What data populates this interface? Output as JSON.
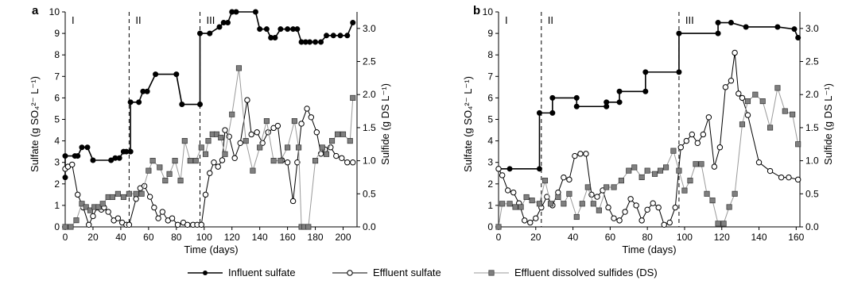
{
  "legend": {
    "influent": "Influent sulfate",
    "effluent": "Effluent sulfate",
    "ds": "Effluent dissolved sulfides (DS)"
  },
  "colors": {
    "influent": "#000000",
    "effluent": "#000000",
    "ds_line": "#9a9a9a",
    "ds_marker": "#7f7f7f"
  },
  "chart_data": [
    {
      "panel": "a",
      "type": "line",
      "xlabel": "Time (days)",
      "ylabel_left": "Sulfate (g SO₄²⁻ L⁻¹)",
      "ylabel_right": "Sulfide (g DS L⁻¹)",
      "xlim": [
        0,
        210
      ],
      "xticks": [
        0,
        20,
        40,
        60,
        80,
        100,
        120,
        140,
        160,
        180,
        200
      ],
      "ylim_left": [
        0,
        10
      ],
      "yticks_left": [
        0,
        1,
        2,
        3,
        4,
        5,
        6,
        7,
        8,
        9,
        10
      ],
      "ylim_right": [
        0,
        3.25
      ],
      "yticks_right": [
        0.0,
        0.5,
        1.0,
        1.5,
        2.0,
        2.5,
        3.0
      ],
      "phases": [
        {
          "label": "I",
          "x": 0
        },
        {
          "label": "II",
          "x": 46
        },
        {
          "label": "III",
          "x": 97
        }
      ],
      "phase_boundaries": [
        46,
        97
      ],
      "series": [
        {
          "name": "Influent sulfate",
          "axis": "left",
          "marker": "filled-circle",
          "step": true,
          "x": [
            0,
            0,
            7,
            9,
            12,
            16,
            20,
            33,
            36,
            39,
            42,
            44,
            47,
            47,
            53,
            56,
            59,
            65,
            80,
            84,
            97,
            97,
            104,
            111,
            114,
            117,
            120,
            123,
            137,
            140,
            145,
            148,
            151,
            155,
            160,
            164,
            167,
            170,
            173,
            176,
            180,
            184,
            188,
            193,
            198,
            203,
            207
          ],
          "y": [
            2.3,
            3.3,
            3.3,
            3.3,
            3.7,
            3.7,
            3.1,
            3.1,
            3.2,
            3.2,
            3.5,
            3.5,
            3.5,
            5.8,
            5.8,
            6.3,
            6.3,
            7.1,
            7.1,
            5.7,
            5.7,
            9.0,
            9.0,
            9.3,
            9.5,
            9.5,
            10.0,
            10.0,
            10.0,
            9.2,
            9.2,
            8.8,
            8.8,
            9.2,
            9.2,
            9.2,
            9.2,
            8.6,
            8.6,
            8.6,
            8.6,
            8.6,
            8.9,
            8.9,
            8.9,
            8.9,
            9.5
          ]
        },
        {
          "name": "Effluent sulfate",
          "axis": "left",
          "marker": "open-circle",
          "x": [
            0,
            2,
            5,
            9,
            13,
            17,
            20,
            23,
            26,
            28,
            31,
            35,
            38,
            41,
            44,
            46,
            51,
            54,
            57,
            61,
            64,
            67,
            70,
            74,
            77,
            81,
            85,
            88,
            92,
            95,
            98,
            101,
            104,
            107,
            110,
            113,
            115,
            118,
            122,
            126,
            131,
            134,
            138,
            142,
            146,
            150,
            153,
            156,
            160,
            164,
            167,
            170,
            174,
            177,
            181,
            184,
            187,
            191,
            195,
            199,
            203,
            207
          ],
          "y": [
            2.7,
            2.8,
            2.9,
            1.5,
            0.9,
            0.1,
            0.5,
            0.9,
            0.8,
            0.9,
            0.7,
            0.3,
            0.4,
            0.2,
            0.1,
            0.1,
            1.3,
            1.8,
            1.9,
            1.4,
            0.9,
            0.4,
            0.7,
            0.3,
            0.4,
            0.1,
            0.2,
            0.1,
            0.1,
            0.1,
            0.1,
            1.5,
            2.5,
            3.0,
            2.8,
            3.1,
            4.5,
            4.2,
            3.2,
            3.9,
            5.9,
            4.3,
            4.4,
            3.9,
            4.4,
            4.6,
            4.7,
            3.1,
            3.0,
            1.2,
            3.0,
            4.8,
            5.5,
            5.1,
            4.4,
            3.4,
            3.6,
            3.7,
            3.3,
            3.2,
            3.0,
            3.0
          ]
        },
        {
          "name": "Effluent dissolved sulfides (DS)",
          "axis": "right",
          "marker": "gray-square",
          "x": [
            0,
            4,
            8,
            12,
            15,
            18,
            21,
            24,
            27,
            31,
            34,
            38,
            42,
            46,
            51,
            55,
            60,
            63,
            68,
            72,
            75,
            79,
            83,
            86,
            90,
            94,
            98,
            101,
            103,
            106,
            109,
            112,
            115,
            120,
            125,
            130,
            135,
            140,
            145,
            150,
            155,
            160,
            165,
            168,
            170,
            172,
            175,
            180,
            185,
            188,
            192,
            196,
            200,
            205,
            207
          ],
          "y": [
            0.0,
            0.0,
            0.1,
            0.35,
            0.3,
            0.25,
            0.3,
            0.3,
            0.35,
            0.45,
            0.45,
            0.5,
            0.45,
            0.5,
            0.5,
            0.5,
            0.85,
            1.0,
            0.9,
            0.7,
            0.8,
            1.0,
            0.7,
            1.3,
            1.0,
            1.0,
            1.2,
            1.1,
            1.3,
            1.4,
            1.4,
            1.35,
            1.1,
            1.7,
            2.4,
            1.3,
            0.85,
            1.2,
            1.6,
            1.0,
            1.0,
            1.2,
            1.6,
            1.2,
            0.0,
            0.0,
            0.0,
            1.0,
            1.2,
            1.1,
            1.3,
            1.4,
            1.4,
            1.3,
            1.95
          ]
        }
      ]
    },
    {
      "panel": "b",
      "type": "line",
      "xlabel": "Time (days)",
      "ylabel_left": "Sulfate (g SO₄²⁻ L⁻¹)",
      "ylabel_right": "Sulfide (g DS L⁻¹)",
      "xlim": [
        0,
        162
      ],
      "xticks": [
        0,
        20,
        40,
        60,
        80,
        100,
        120,
        140,
        160
      ],
      "ylim_left": [
        0,
        10
      ],
      "yticks_left": [
        0,
        1,
        2,
        3,
        4,
        5,
        6,
        7,
        8,
        9,
        10
      ],
      "ylim_right": [
        0,
        3.25
      ],
      "yticks_right": [
        0.0,
        0.5,
        1.0,
        1.5,
        2.0,
        2.5,
        3.0
      ],
      "phases": [
        {
          "label": "I",
          "x": 0
        },
        {
          "label": "II",
          "x": 23
        },
        {
          "label": "III",
          "x": 97
        }
      ],
      "phase_boundaries": [
        23,
        97
      ],
      "series": [
        {
          "name": "Influent sulfate",
          "axis": "left",
          "marker": "filled-circle",
          "step": true,
          "x": [
            0,
            6,
            22,
            22,
            29,
            29,
            42,
            42,
            58,
            58,
            65,
            65,
            79,
            79,
            97,
            97,
            118,
            118,
            125,
            133,
            150,
            159,
            161
          ],
          "y": [
            2.7,
            2.7,
            2.7,
            5.3,
            5.3,
            6.0,
            6.0,
            5.6,
            5.6,
            5.8,
            5.8,
            6.3,
            6.3,
            7.2,
            7.2,
            9.0,
            9.0,
            9.5,
            9.5,
            9.3,
            9.3,
            9.2,
            8.8
          ]
        },
        {
          "name": "Effluent sulfate",
          "axis": "left",
          "marker": "open-circle",
          "x": [
            0,
            2,
            5,
            8,
            11,
            14,
            17,
            20,
            23,
            26,
            29,
            32,
            35,
            38,
            41,
            44,
            47,
            50,
            53,
            56,
            59,
            62,
            65,
            68,
            71,
            74,
            77,
            80,
            83,
            86,
            89,
            92,
            95,
            98,
            101,
            104,
            107,
            110,
            113,
            116,
            119,
            122,
            125,
            127,
            129,
            131,
            134,
            140,
            146,
            152,
            156,
            161
          ],
          "y": [
            2.7,
            2.4,
            1.7,
            1.6,
            1.1,
            0.3,
            0.2,
            0.4,
            0.9,
            1.4,
            1.0,
            1.6,
            2.3,
            2.2,
            3.3,
            3.4,
            3.4,
            1.5,
            1.4,
            1.7,
            0.9,
            0.4,
            0.3,
            0.7,
            1.3,
            1.0,
            0.3,
            0.8,
            1.1,
            0.9,
            0.1,
            0.2,
            0.9,
            3.7,
            4.0,
            4.3,
            3.9,
            4.3,
            5.1,
            2.8,
            3.7,
            6.5,
            6.8,
            8.1,
            6.2,
            6.0,
            5.2,
            3.0,
            2.6,
            2.3,
            2.3,
            2.2
          ]
        },
        {
          "name": "Effluent dissolved sulfides (DS)",
          "axis": "right",
          "marker": "gray-square",
          "x": [
            0,
            2,
            6,
            9,
            12,
            15,
            18,
            22,
            25,
            28,
            32,
            35,
            38,
            42,
            45,
            48,
            51,
            54,
            58,
            62,
            66,
            70,
            73,
            77,
            80,
            84,
            87,
            90,
            94,
            97,
            100,
            103,
            106,
            109,
            112,
            115,
            118,
            121,
            124,
            127,
            131,
            134,
            138,
            142,
            146,
            150,
            154,
            158,
            161
          ],
          "y": [
            0.0,
            0.35,
            0.35,
            0.3,
            0.3,
            0.45,
            0.4,
            0.35,
            0.7,
            0.35,
            0.45,
            0.35,
            0.5,
            0.15,
            0.35,
            0.6,
            0.35,
            0.25,
            0.6,
            0.6,
            0.7,
            0.85,
            0.9,
            0.75,
            0.85,
            0.8,
            0.85,
            0.9,
            1.15,
            0.85,
            0.55,
            0.7,
            0.95,
            0.95,
            0.5,
            0.4,
            0.05,
            0.05,
            0.3,
            0.5,
            1.55,
            1.9,
            2.0,
            1.9,
            1.5,
            2.1,
            1.75,
            1.7,
            1.25
          ]
        }
      ]
    }
  ]
}
